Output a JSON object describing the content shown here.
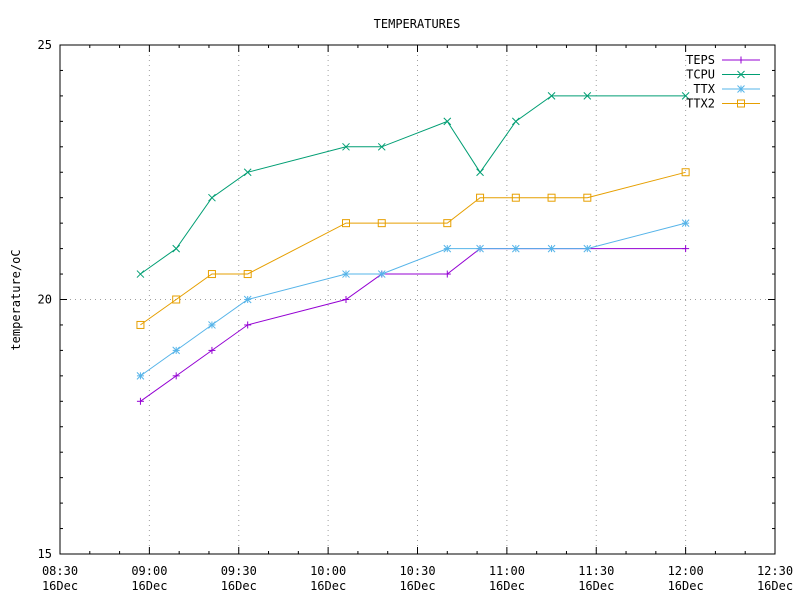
{
  "chart_data": {
    "type": "line",
    "title": "TEMPERATURES",
    "xlabel": "",
    "ylabel": "temperature/oC",
    "ylim": [
      15,
      25
    ],
    "yticks": [
      15,
      20,
      25
    ],
    "xlim": [
      "08:30",
      "12:30"
    ],
    "xticks": [
      {
        "time": "08:30",
        "date": "16Dec"
      },
      {
        "time": "09:00",
        "date": "16Dec"
      },
      {
        "time": "09:30",
        "date": "16Dec"
      },
      {
        "time": "10:00",
        "date": "16Dec"
      },
      {
        "time": "10:30",
        "date": "16Dec"
      },
      {
        "time": "11:00",
        "date": "16Dec"
      },
      {
        "time": "11:30",
        "date": "16Dec"
      },
      {
        "time": "12:00",
        "date": "16Dec"
      },
      {
        "time": "12:30",
        "date": "16Dec"
      }
    ],
    "grid": true,
    "legend_position": "top-right",
    "series": [
      {
        "name": "TEPS",
        "color": "#9400d3",
        "marker": "plus",
        "x": [
          "08:57",
          "09:09",
          "09:21",
          "09:33",
          "10:06",
          "10:18",
          "10:40",
          "10:51",
          "12:00"
        ],
        "y": [
          18.0,
          18.5,
          19.0,
          19.5,
          20.0,
          20.5,
          20.5,
          21.0,
          21.0
        ]
      },
      {
        "name": "TCPU",
        "color": "#009e73",
        "marker": "cross",
        "x": [
          "08:57",
          "09:09",
          "09:21",
          "09:33",
          "10:06",
          "10:18",
          "10:40",
          "10:51",
          "11:03",
          "11:15",
          "11:27",
          "12:00"
        ],
        "y": [
          20.5,
          21.0,
          22.0,
          22.5,
          23.0,
          23.0,
          23.5,
          22.5,
          23.5,
          24.0,
          24.0,
          24.0
        ]
      },
      {
        "name": "TTX",
        "color": "#56b4e9",
        "marker": "star",
        "x": [
          "08:57",
          "09:09",
          "09:21",
          "09:33",
          "10:06",
          "10:18",
          "10:40",
          "10:51",
          "11:03",
          "11:15",
          "11:27",
          "12:00"
        ],
        "y": [
          18.5,
          19.0,
          19.5,
          20.0,
          20.5,
          20.5,
          21.0,
          21.0,
          21.0,
          21.0,
          21.0,
          21.5
        ]
      },
      {
        "name": "TTX2",
        "color": "#e69f00",
        "marker": "square",
        "x": [
          "08:57",
          "09:09",
          "09:21",
          "09:33",
          "10:06",
          "10:18",
          "10:40",
          "10:51",
          "11:03",
          "11:15",
          "11:27",
          "12:00"
        ],
        "y": [
          19.5,
          20.0,
          20.5,
          20.5,
          21.5,
          21.5,
          21.5,
          22.0,
          22.0,
          22.0,
          22.0,
          22.5
        ]
      }
    ]
  }
}
